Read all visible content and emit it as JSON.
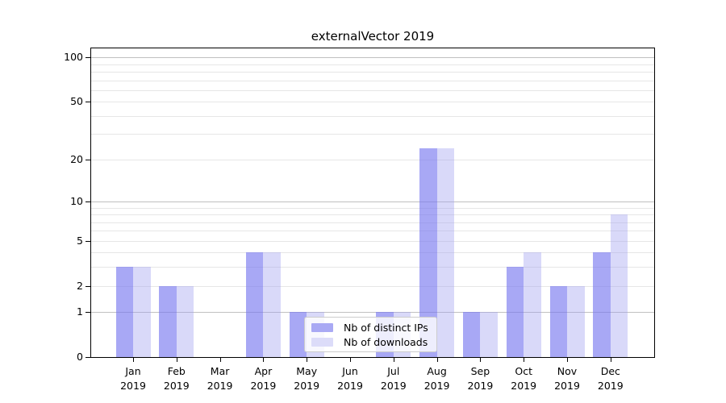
{
  "chart_data": {
    "type": "bar",
    "title": "externalVector 2019",
    "categories": [
      "Jan",
      "Feb",
      "Mar",
      "Apr",
      "May",
      "Jun",
      "Jul",
      "Aug",
      "Sep",
      "Oct",
      "Nov",
      "Dec"
    ],
    "year_label": "2019",
    "series": [
      {
        "name": "Nb of distinct IPs",
        "swatch_color": "#a9a9f4",
        "fill_color": "rgba(121,121,240,0.65)",
        "values": [
          3,
          2,
          0,
          4,
          1,
          0,
          1,
          24,
          1,
          3,
          2,
          4
        ]
      },
      {
        "name": "Nb of downloads",
        "swatch_color": "#dcdcf9",
        "fill_color": "rgba(160,160,240,0.40)",
        "values": [
          3,
          2,
          0,
          4,
          1,
          0,
          1,
          24,
          1,
          4,
          2,
          8
        ]
      }
    ],
    "xlabel": "",
    "ylabel": "",
    "yaxis": {
      "scale": "log10(1+v)",
      "min": 0,
      "max": 115,
      "ticks": [
        0,
        1,
        2,
        5,
        10,
        20,
        50,
        100
      ],
      "major_gridlines": [
        1,
        10,
        100
      ],
      "minor_gridlines": [
        2,
        3,
        4,
        5,
        6,
        7,
        8,
        9,
        20,
        30,
        40,
        50,
        60,
        70,
        80,
        90
      ]
    },
    "grid": true,
    "legend_position": "bottom-center"
  }
}
